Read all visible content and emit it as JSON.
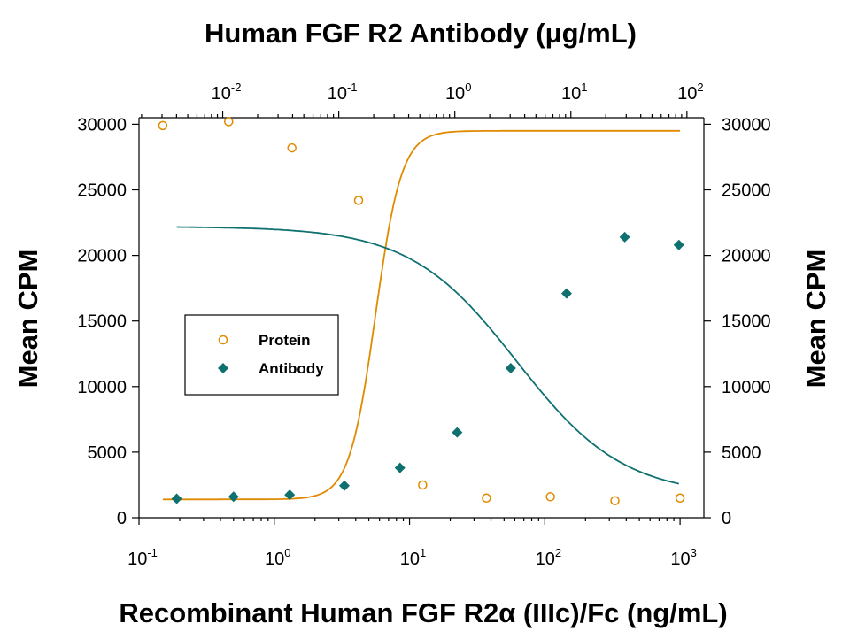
{
  "chart_data": {
    "type": "scatter",
    "top_title": "Human FGF R2 Antibody (μg/mL)",
    "xlabel": "Recombinant Human FGF R2α (IIIc)/Fc (ng/mL)",
    "ylabel_left": "Mean CPM",
    "ylabel_right": "Mean CPM",
    "x_scale": "log",
    "xlim": [
      0.1,
      1500
    ],
    "ylim": [
      0,
      30500
    ],
    "x_ticks": [
      {
        "value": 0.1,
        "base": "10",
        "exp": "-1"
      },
      {
        "value": 1,
        "base": "10",
        "exp": "0"
      },
      {
        "value": 10,
        "base": "10",
        "exp": "1"
      },
      {
        "value": 100,
        "base": "10",
        "exp": "2"
      },
      {
        "value": 1000,
        "base": "10",
        "exp": "3"
      }
    ],
    "top_x_scale": "log",
    "top_xlim": [
      0.0019,
      140
    ],
    "top_ticks": [
      {
        "value": 0.01,
        "base": "10",
        "exp": "-2"
      },
      {
        "value": 0.1,
        "base": "10",
        "exp": "-1"
      },
      {
        "value": 1,
        "base": "10",
        "exp": "0"
      },
      {
        "value": 10,
        "base": "10",
        "exp": "1"
      },
      {
        "value": 100,
        "base": "10",
        "exp": "2"
      }
    ],
    "y_ticks": [
      "0",
      "5000",
      "10000",
      "15000",
      "20000",
      "25000",
      "30000"
    ],
    "legend": {
      "position": "center-left",
      "entries": [
        "Protein",
        "Antibody"
      ]
    },
    "series": [
      {
        "name": "Protein",
        "marker": "open-circle",
        "color": "#E08A00",
        "x": [
          0.15,
          0.46,
          1.35,
          4.2,
          12.5,
          37,
          110,
          330,
          1000
        ],
        "y": [
          29900,
          30200,
          28200,
          24200,
          2500,
          1500,
          1600,
          1300,
          1500
        ],
        "fit": {
          "model": "4PL",
          "top": 29500,
          "bottom": 1400,
          "ec50": 5.6,
          "hill": -4.5
        }
      },
      {
        "name": "Antibody",
        "marker": "filled-diamond",
        "color": "#0F7070",
        "x": [
          0.19,
          0.5,
          1.3,
          3.3,
          8.5,
          22.5,
          56,
          145,
          390,
          980
        ],
        "y": [
          1450,
          1600,
          1750,
          2450,
          3800,
          6500,
          11400,
          17100,
          21400,
          20800
        ],
        "fit": {
          "model": "4PL",
          "top": 22200,
          "bottom": 1650,
          "ec50": 62,
          "hill": 1.1
        }
      }
    ]
  }
}
